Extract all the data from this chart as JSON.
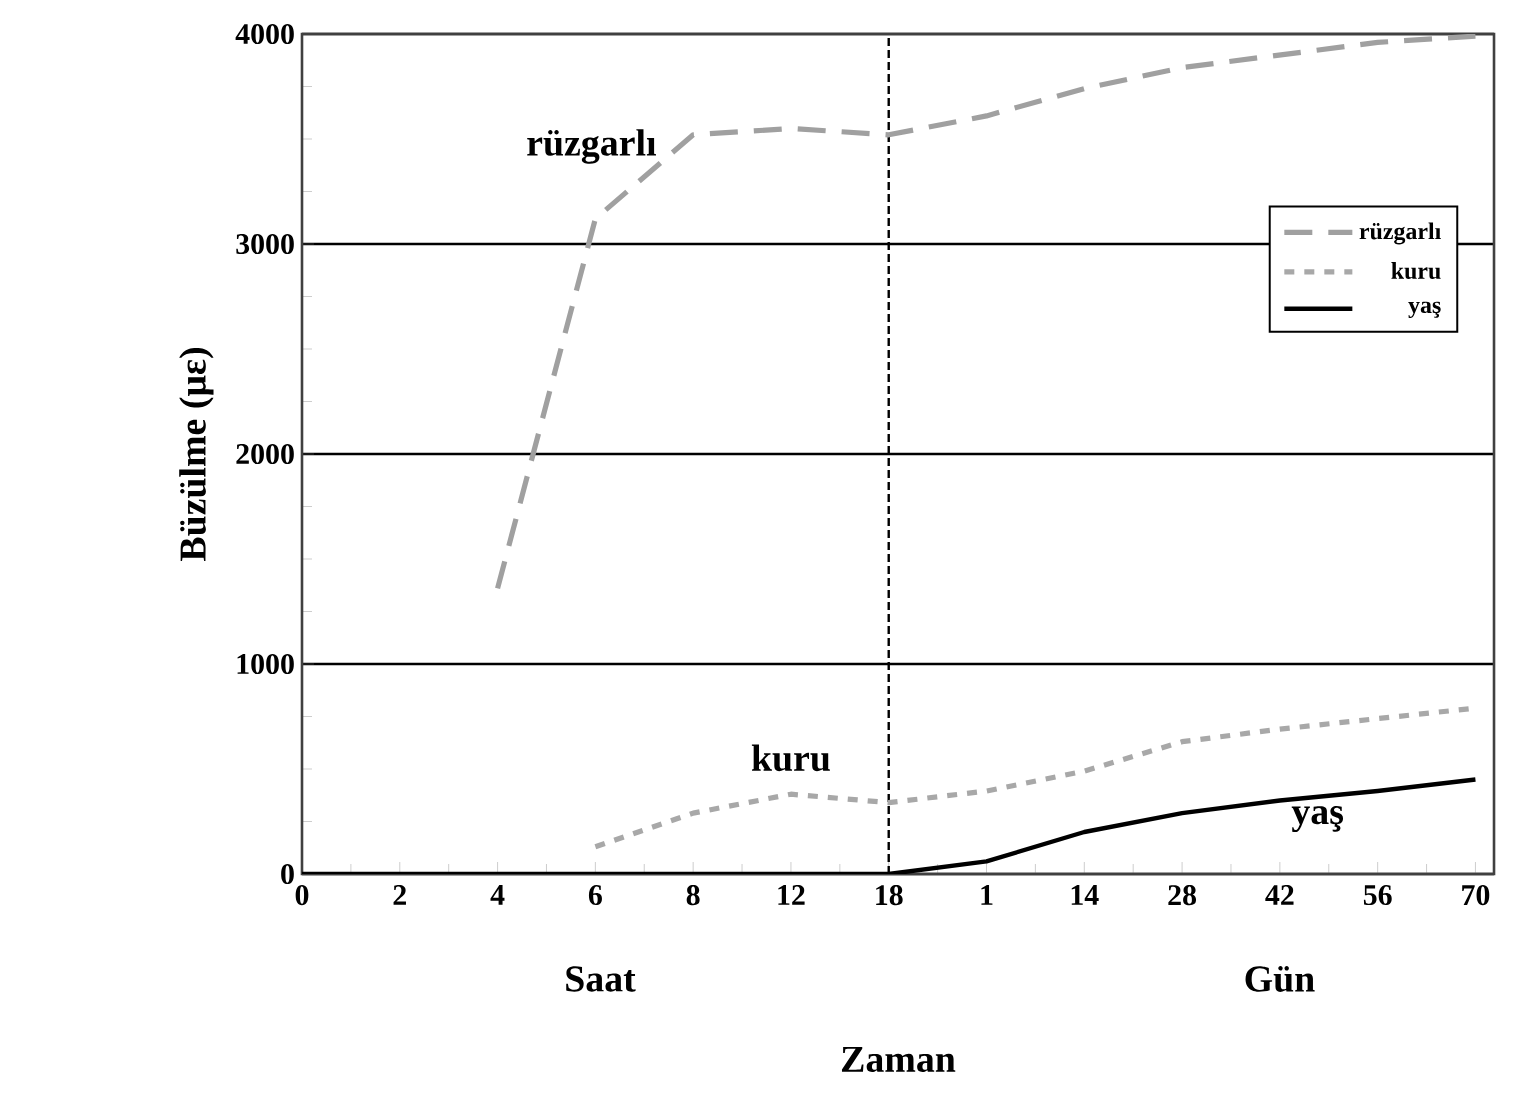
{
  "chart_data": {
    "type": "line",
    "xlabel": "Zaman",
    "ylabel": "Büzülme (με)",
    "annotations": [
      "Saat",
      "Gün"
    ],
    "categories": [
      "0",
      "2",
      "4",
      "6",
      "8",
      "12",
      "18",
      "1",
      "14",
      "28",
      "42",
      "56",
      "70"
    ],
    "ylim": [
      0,
      4000
    ],
    "yticks": [
      0,
      1000,
      2000,
      3000,
      4000
    ],
    "grid": "y",
    "legend": "right",
    "ref_lines": [
      {
        "axis": "x",
        "value": "18",
        "color": "#000000",
        "line_style": "dashed"
      }
    ],
    "series": [
      {
        "name": "rüzgarlı",
        "color": "#a0a0a0",
        "line_style": "dashed",
        "values": [
          null,
          null,
          1360,
          3120,
          3520,
          3550,
          3520,
          3610,
          3740,
          3840,
          3900,
          3960,
          3990
        ]
      },
      {
        "name": "kuru",
        "color": "#a8a8a8",
        "line_style": "dotted",
        "values": [
          null,
          null,
          null,
          130,
          290,
          380,
          340,
          395,
          490,
          630,
          690,
          740,
          790
        ]
      },
      {
        "name": "yaş",
        "color": "#000000",
        "line_style": "solid",
        "values": [
          0,
          0,
          0,
          0,
          0,
          0,
          0,
          60,
          200,
          290,
          350,
          395,
          450
        ]
      }
    ]
  }
}
